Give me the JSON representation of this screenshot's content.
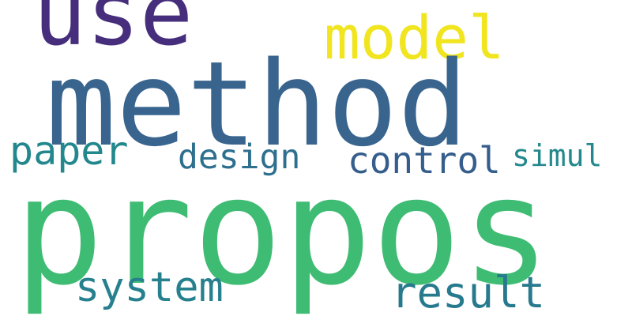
{
  "words": {
    "propos": {
      "text": "propos",
      "color": "#3fbc73"
    },
    "method": {
      "text": "method",
      "color": "#38648e"
    },
    "use": {
      "text": "use",
      "color": "#462e7c"
    },
    "model": {
      "text": "model",
      "color": "#f0e51e"
    },
    "paper": {
      "text": "paper",
      "color": "#23878e"
    },
    "design": {
      "text": "design",
      "color": "#2d6f8e"
    },
    "control": {
      "text": "control",
      "color": "#355e8d"
    },
    "simul": {
      "text": "simul",
      "color": "#24888d"
    },
    "system": {
      "text": "system",
      "color": "#26808e"
    },
    "result": {
      "text": "result",
      "color": "#277a8e"
    }
  }
}
